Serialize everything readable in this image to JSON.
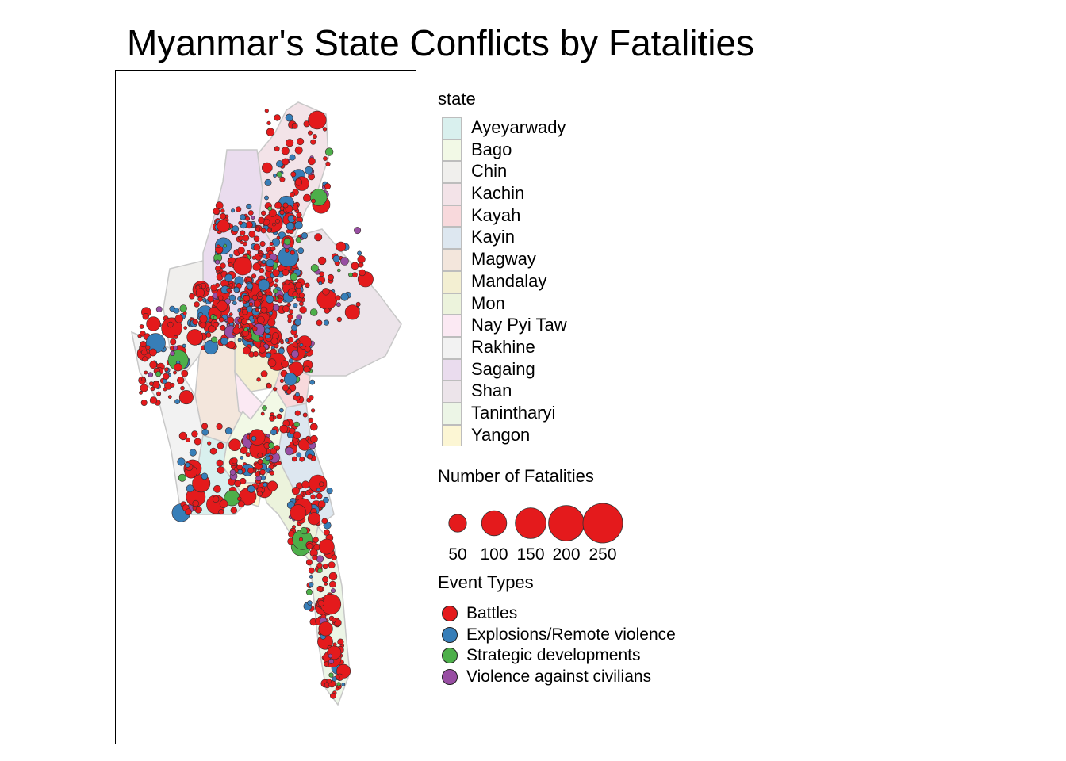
{
  "title": "Myanmar's State Conflicts by Fatalities",
  "state_legend": {
    "title": "state",
    "items": [
      {
        "label": "Ayeyarwady",
        "color": "#d9f0ee"
      },
      {
        "label": "Bago",
        "color": "#f2f9e6"
      },
      {
        "label": "Chin",
        "color": "#f0efed"
      },
      {
        "label": "Kachin",
        "color": "#f3e3e8"
      },
      {
        "label": "Kayah",
        "color": "#f8d9dc"
      },
      {
        "label": "Kayin",
        "color": "#dde7f0"
      },
      {
        "label": "Magway",
        "color": "#f3e6dc"
      },
      {
        "label": "Mandalay",
        "color": "#f3efd2"
      },
      {
        "label": "Mon",
        "color": "#ecf3dc"
      },
      {
        "label": "Nay Pyi Taw",
        "color": "#fbe9f3"
      },
      {
        "label": "Rakhine",
        "color": "#f2f2f2"
      },
      {
        "label": "Sagaing",
        "color": "#eadcee"
      },
      {
        "label": "Shan",
        "color": "#ece4ea"
      },
      {
        "label": "Tanintharyi",
        "color": "#ecf5e6"
      },
      {
        "label": "Yangon",
        "color": "#fcf6d4"
      }
    ]
  },
  "size_legend": {
    "title": "Number of Fatalities",
    "items": [
      {
        "label": "50",
        "value": 50
      },
      {
        "label": "100",
        "value": 100
      },
      {
        "label": "150",
        "value": 150
      },
      {
        "label": "200",
        "value": 200
      },
      {
        "label": "250",
        "value": 250
      }
    ],
    "fill": "#e41a1c"
  },
  "type_legend": {
    "title": "Event Types",
    "items": [
      {
        "label": "Battles",
        "color": "#e41a1c"
      },
      {
        "label": "Explosions/Remote violence",
        "color": "#377eb8"
      },
      {
        "label": "Strategic developments",
        "color": "#4daf4a"
      },
      {
        "label": "Violence against civilians",
        "color": "#984ea3"
      }
    ]
  },
  "map": {
    "border_color": "#c8c8c8",
    "icon": "myanmar-map"
  }
}
